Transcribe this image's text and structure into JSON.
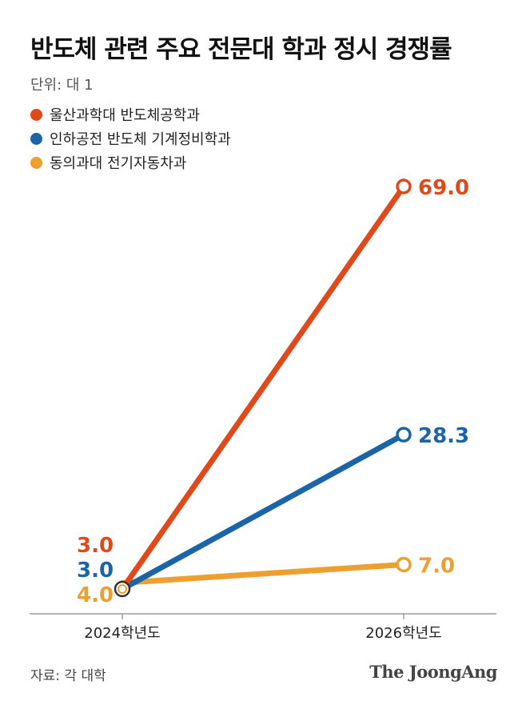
{
  "title": "반도체 관련 주요 전문대 학과 정시 경쟁률",
  "unit": "단위: 대 1",
  "source": "자료: 각 대학",
  "brand": "The JoongAng",
  "chart_data": {
    "type": "line",
    "categories": [
      "2024학년도",
      "2026학년도"
    ],
    "series": [
      {
        "name": "울산과학대 반도체공학과",
        "values": [
          3.0,
          69.0
        ],
        "labels": [
          "3.0",
          "69.0"
        ],
        "color": "#e04a1b"
      },
      {
        "name": "인하공전 반도체 기계정비학과",
        "values": [
          3.0,
          28.3
        ],
        "labels": [
          "3.0",
          "28.3"
        ],
        "color": "#1b64a8"
      },
      {
        "name": "동의과대 전기자동차과",
        "values": [
          4.0,
          7.0
        ],
        "labels": [
          "4.0",
          "7.0"
        ],
        "color": "#eda030"
      }
    ],
    "ylim": [
      3.0,
      69.0
    ],
    "grid": false,
    "legend": "top-left"
  }
}
